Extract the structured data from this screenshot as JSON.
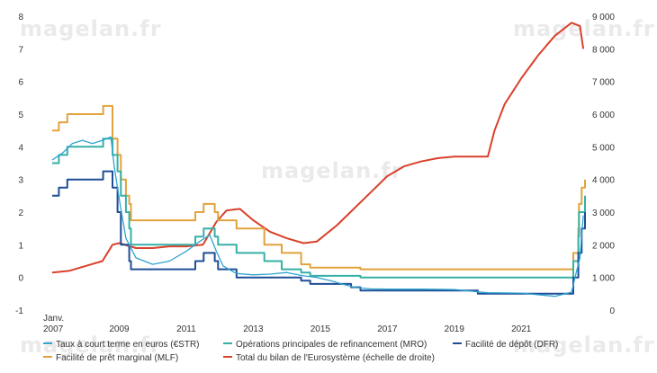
{
  "watermark": "magelan.fr",
  "chart_data": {
    "type": "line",
    "x_axis": {
      "first_label_top": "Janv.",
      "first_label_bottom": "2007",
      "ticks": [
        "2009",
        "2011",
        "2013",
        "2015",
        "2017",
        "2019",
        "2021"
      ],
      "tick_years": [
        2009,
        2011,
        2013,
        2015,
        2017,
        2019,
        2021
      ],
      "range": [
        2007.0,
        2022.9
      ]
    },
    "y_left": {
      "ticks": [
        "-1",
        "0",
        "1",
        "2",
        "3",
        "4",
        "5",
        "6",
        "7",
        "8"
      ],
      "range": [
        -1,
        8
      ]
    },
    "y_right": {
      "ticks": [
        "0",
        "1 000",
        "2 000",
        "3 000",
        "4 000",
        "5 000",
        "6 000",
        "7 000",
        "8 000",
        "9 000"
      ],
      "range": [
        0,
        9000
      ]
    },
    "grid": false,
    "legend_position": "bottom",
    "series": [
      {
        "name": "Taux à court terme en euros (€STR)",
        "axis": "left",
        "color": "#2fa4d0",
        "x": [
          2007.0,
          2007.3,
          2007.6,
          2007.9,
          2008.2,
          2008.5,
          2008.75,
          2008.85,
          2009.0,
          2009.2,
          2009.5,
          2010.0,
          2010.5,
          2011.0,
          2011.4,
          2011.7,
          2011.9,
          2012.1,
          2012.5,
          2013.0,
          2013.5,
          2014.0,
          2014.5,
          2014.9,
          2015.3,
          2016.0,
          2016.5,
          2017.0,
          2018.0,
          2019.0,
          2019.8,
          2020.0,
          2021.0,
          2022.0,
          2022.5,
          2022.65,
          2022.75,
          2022.85
        ],
        "values": [
          3.6,
          3.8,
          4.1,
          4.2,
          4.1,
          4.2,
          4.3,
          3.4,
          2.4,
          1.2,
          0.6,
          0.4,
          0.5,
          0.8,
          1.1,
          1.3,
          0.8,
          0.35,
          0.12,
          0.08,
          0.1,
          0.15,
          0.05,
          0.0,
          -0.1,
          -0.3,
          -0.35,
          -0.36,
          -0.36,
          -0.37,
          -0.45,
          -0.47,
          -0.48,
          -0.58,
          -0.45,
          0.2,
          0.6,
          1.9
        ]
      },
      {
        "name": "Opérations principales de refinancement (MRO)",
        "axis": "left",
        "color": "#36b0a6",
        "x": [
          2007.0,
          2007.2,
          2007.45,
          2008.52,
          2008.8,
          2008.95,
          2009.05,
          2009.2,
          2009.3,
          2009.35,
          2011.27,
          2011.52,
          2011.85,
          2011.95,
          2012.5,
          2013.33,
          2013.85,
          2014.43,
          2014.7,
          2016.2,
          2022.55,
          2022.7,
          2022.72,
          2022.9
        ],
        "values": [
          3.5,
          3.75,
          4.0,
          4.25,
          3.75,
          3.25,
          2.5,
          2.0,
          1.5,
          1.0,
          1.25,
          1.5,
          1.25,
          1.0,
          0.75,
          0.5,
          0.25,
          0.15,
          0.05,
          0.0,
          0.5,
          1.25,
          2.0,
          2.5
        ]
      },
      {
        "name": "Facilité de dépôt (DFR)",
        "axis": "left",
        "color": "#1f4e96",
        "x": [
          2007.0,
          2007.2,
          2007.45,
          2008.52,
          2008.8,
          2008.95,
          2009.05,
          2009.2,
          2009.3,
          2009.35,
          2011.27,
          2011.52,
          2011.85,
          2011.95,
          2012.5,
          2014.43,
          2014.7,
          2015.92,
          2016.2,
          2019.7,
          2022.55,
          2022.7,
          2022.8,
          2022.9
        ],
        "values": [
          2.5,
          2.75,
          3.0,
          3.25,
          2.75,
          2.0,
          1.0,
          1.0,
          0.5,
          0.25,
          0.5,
          0.75,
          0.5,
          0.25,
          0.0,
          -0.1,
          -0.2,
          -0.3,
          -0.4,
          -0.5,
          0.0,
          0.75,
          1.5,
          2.0
        ]
      },
      {
        "name": "Facilité de prêt marginal (MLF)",
        "axis": "left",
        "color": "#e2a23b",
        "x": [
          2007.0,
          2007.2,
          2007.45,
          2008.52,
          2008.8,
          2008.95,
          2009.05,
          2009.2,
          2009.3,
          2009.35,
          2011.27,
          2011.52,
          2011.85,
          2011.95,
          2012.5,
          2013.33,
          2013.85,
          2014.43,
          2014.7,
          2016.2,
          2022.55,
          2022.7,
          2022.72,
          2022.8,
          2022.9
        ],
        "values": [
          4.5,
          4.75,
          5.0,
          5.25,
          4.25,
          3.75,
          3.0,
          2.5,
          2.25,
          1.75,
          2.0,
          2.25,
          2.0,
          1.75,
          1.5,
          1.0,
          0.75,
          0.4,
          0.3,
          0.25,
          0.75,
          1.5,
          2.25,
          2.75,
          3.0
        ]
      },
      {
        "name": "Total du bilan de l'Eurosystème (échelle de droite)",
        "axis": "right",
        "color": "#d9412b",
        "x": [
          2007.0,
          2007.5,
          2008.0,
          2008.5,
          2008.8,
          2009.0,
          2009.5,
          2010.0,
          2010.5,
          2011.0,
          2011.5,
          2011.9,
          2012.2,
          2012.6,
          2013.0,
          2013.5,
          2014.0,
          2014.5,
          2014.9,
          2015.5,
          2016.0,
          2016.5,
          2017.0,
          2017.5,
          2018.0,
          2018.5,
          2019.0,
          2019.5,
          2020.0,
          2020.2,
          2020.5,
          2021.0,
          2021.5,
          2022.0,
          2022.5,
          2022.75,
          2022.85
        ],
        "values": [
          1150,
          1200,
          1350,
          1500,
          2000,
          2050,
          1900,
          1900,
          1950,
          1950,
          2000,
          2700,
          3050,
          3100,
          2750,
          2400,
          2200,
          2050,
          2100,
          2600,
          3100,
          3600,
          4100,
          4400,
          4550,
          4650,
          4700,
          4700,
          4700,
          5500,
          6300,
          7100,
          7800,
          8400,
          8800,
          8700,
          8000
        ]
      }
    ]
  }
}
